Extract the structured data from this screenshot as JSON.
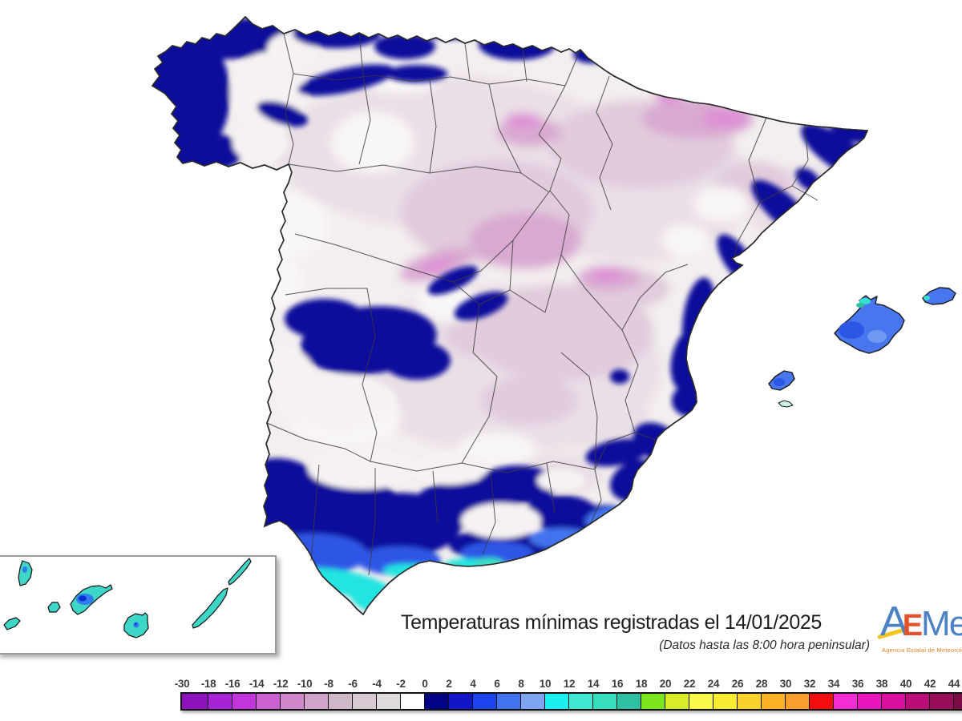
{
  "title": {
    "text": "Temperaturas mínimas registradas el 14/01/2025",
    "subtitle": "(Datos hasta las 8:00 hora peninsular)"
  },
  "logo": {
    "letter_a": "A",
    "letter_e": "E",
    "letters_met": "Met",
    "tagline": "Agencia Estatal de Meteorología"
  },
  "colorbar": {
    "stops": [
      {
        "label": "-30",
        "color": "#8B12BC"
      },
      {
        "label": "-18",
        "color": "#A724D6"
      },
      {
        "label": "-16",
        "color": "#C334DA"
      },
      {
        "label": "-14",
        "color": "#CB61D2"
      },
      {
        "label": "-12",
        "color": "#D088CD"
      },
      {
        "label": "-10",
        "color": "#D1A3CB"
      },
      {
        "label": "-8",
        "color": "#CFB8C8"
      },
      {
        "label": "-6",
        "color": "#D6C9D1"
      },
      {
        "label": "-4",
        "color": "#DDD9DC"
      },
      {
        "label": "-2",
        "color": "#FFFFFF"
      },
      {
        "label": "0",
        "color": "#020287"
      },
      {
        "label": "2",
        "color": "#1315C9"
      },
      {
        "label": "4",
        "color": "#1C45F0"
      },
      {
        "label": "6",
        "color": "#4273EE"
      },
      {
        "label": "8",
        "color": "#7FA4F4"
      },
      {
        "label": "10",
        "color": "#1BF0F0"
      },
      {
        "label": "12",
        "color": "#41E8D2"
      },
      {
        "label": "14",
        "color": "#36DEBE"
      },
      {
        "label": "16",
        "color": "#2FBFA2"
      },
      {
        "label": "18",
        "color": "#7DE51D"
      },
      {
        "label": "20",
        "color": "#D8EC28"
      },
      {
        "label": "22",
        "color": "#F9F94B"
      },
      {
        "label": "24",
        "color": "#F8EC33"
      },
      {
        "label": "26",
        "color": "#FBD22B"
      },
      {
        "label": "28",
        "color": "#FBB227"
      },
      {
        "label": "30",
        "color": "#F99D2D"
      },
      {
        "label": "32",
        "color": "#F60D0D"
      },
      {
        "label": "34",
        "color": "#F32CD3"
      },
      {
        "label": "36",
        "color": "#E816BC"
      },
      {
        "label": "38",
        "color": "#DB0F9E"
      },
      {
        "label": "40",
        "color": "#BB0D78"
      },
      {
        "label": "42",
        "color": "#9A0D58"
      },
      {
        "label": "44",
        "color": "#7A0B45"
      }
    ]
  }
}
